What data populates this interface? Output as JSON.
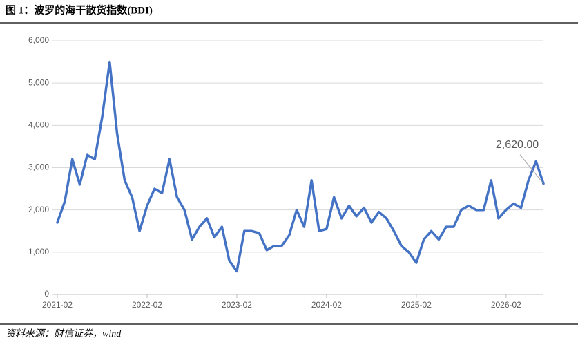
{
  "title": "图 1：波罗的海干散货指数(BDI)",
  "source": "资料来源：财信证券，wind",
  "chart_data": {
    "type": "line",
    "categories": [
      "2021-02",
      null,
      null,
      null,
      null,
      null,
      null,
      null,
      null,
      null,
      null,
      null,
      "2022-02",
      null,
      null,
      null,
      null,
      null,
      null,
      null,
      null,
      null,
      null,
      null,
      "2023-02",
      null,
      null,
      null,
      null,
      null,
      null,
      null,
      null,
      null,
      null,
      null,
      "2024-02",
      null,
      null,
      null,
      null,
      null,
      null,
      null,
      null,
      null,
      null,
      null,
      "2025-02",
      null,
      null,
      null,
      null,
      null,
      null,
      null,
      null,
      null,
      null,
      null,
      "2026-02",
      null,
      null,
      null,
      null,
      null
    ],
    "values": [
      1700,
      2200,
      3200,
      2600,
      3300,
      3200,
      4200,
      5500,
      3800,
      2700,
      2300,
      1500,
      2100,
      2500,
      2400,
      3200,
      2300,
      2000,
      1300,
      1600,
      1800,
      1350,
      1600,
      800,
      550,
      1500,
      1500,
      1450,
      1050,
      1150,
      1150,
      1400,
      2000,
      1600,
      2700,
      1500,
      1550,
      2300,
      1800,
      2100,
      1850,
      2050,
      1700,
      1950,
      1800,
      1500,
      1150,
      1000,
      750,
      1300,
      1500,
      1300,
      1600,
      1600,
      2000,
      2100,
      2000,
      2000,
      2700,
      1800,
      2000,
      2150,
      2050,
      2700,
      3150,
      2620
    ],
    "value_labels": [
      null,
      null,
      null,
      null,
      null,
      null,
      null,
      null,
      null,
      null,
      null,
      null,
      null,
      null,
      null,
      null,
      null,
      null,
      null,
      null,
      null,
      null,
      null,
      null,
      null,
      null,
      null,
      null,
      null,
      null,
      null,
      null,
      null,
      null,
      null,
      null,
      null,
      null,
      null,
      null,
      null,
      null,
      null,
      null,
      null,
      null,
      null,
      null,
      null,
      null,
      null,
      null,
      null,
      null,
      null,
      null,
      null,
      null,
      null,
      null,
      null,
      null,
      null,
      null,
      null,
      "2,620.00"
    ],
    "color": "#4472c4",
    "ylim": [
      0,
      6000
    ],
    "yticks": [
      0,
      {
        "value": 1000,
        "label": "1,000"
      },
      {
        "value": 2000,
        "label": "2,000"
      },
      {
        "value": 3000,
        "label": "3,000"
      },
      {
        "value": 4000,
        "label": "4,000"
      },
      {
        "value": 5000,
        "label": "5,000"
      },
      {
        "value": 6000,
        "label": "6,000"
      }
    ],
    "grid": true
  }
}
